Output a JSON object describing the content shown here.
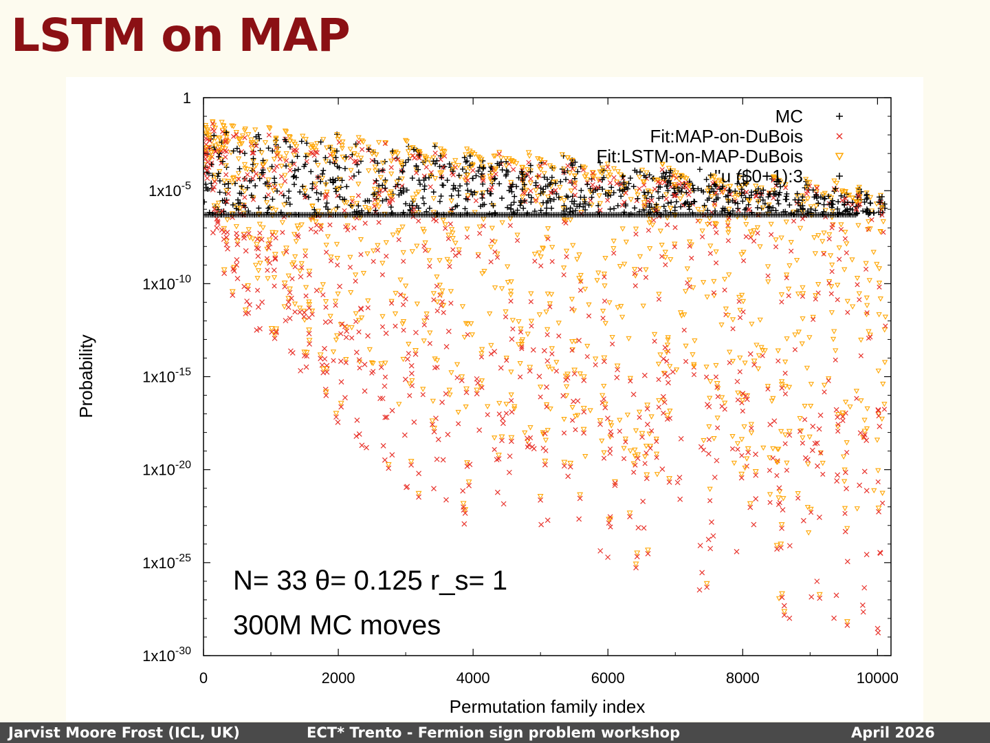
{
  "slide": {
    "title": "LSTM on MAP"
  },
  "footer": {
    "author": "Jarvist Moore Frost  (ICL, UK)",
    "event": "ECT* Trento - Fermion sign problem workshop",
    "date": "April  2026"
  },
  "colors": {
    "title": "#8b1014",
    "mc": "#000000",
    "map_fit": "#e8322b",
    "lstm_fit": "#ffa500",
    "footer_bg": "#4a4a4a",
    "background": "#fdfbef"
  },
  "chart_data": {
    "type": "scatter",
    "title": "",
    "xlabel": "Permutation family index",
    "ylabel": "Probability",
    "xlim": [
      0,
      10200
    ],
    "ylim_log10": [
      -30,
      0
    ],
    "y_scale": "log",
    "x_ticks": [
      0,
      2000,
      4000,
      6000,
      8000,
      10000
    ],
    "x_tick_labels": [
      "0",
      "2000",
      "4000",
      "6000",
      "8000",
      "10000"
    ],
    "y_ticks_log10": [
      0,
      -5,
      -10,
      -15,
      -20,
      -25,
      -30
    ],
    "y_tick_labels": [
      {
        "base": "1",
        "exp": ""
      },
      {
        "base": "1x10",
        "exp": "-5"
      },
      {
        "base": "1x10",
        "exp": "-10"
      },
      {
        "base": "1x10",
        "exp": "-15"
      },
      {
        "base": "1x10",
        "exp": "-20"
      },
      {
        "base": "1x10",
        "exp": "-25"
      },
      {
        "base": "1x10",
        "exp": "-30"
      }
    ],
    "legend_position": "top-right",
    "legend": [
      {
        "label": "MC",
        "marker": "plus",
        "color": "#000000"
      },
      {
        "label": "Fit:MAP-on-DuBois",
        "marker": "cross",
        "color": "#e8322b"
      },
      {
        "label": "Fit:LSTM-on-MAP-DuBois",
        "marker": "triangle-down",
        "color": "#ffa500"
      },
      {
        "label": "''u ($0+1):3",
        "marker": "plus",
        "color": "#000000"
      }
    ],
    "annotations": [
      "N= 33 θ= 0.125 r_s= 1",
      "300M MC moves"
    ],
    "series_description": "Points grouped in sawtooth families; each family starts near the top and decays toward smaller probabilities.",
    "family_starts": [
      0,
      130,
      270,
      420,
      580,
      760,
      960,
      1180,
      1420,
      1680,
      1960,
      2260,
      2600,
      2980,
      3380,
      3820,
      4290,
      4790,
      5320,
      5880,
      6320,
      6800,
      7350,
      7900,
      8400,
      8900,
      9350,
      9700,
      10000
    ],
    "family_min_log10": [
      -5,
      -8,
      -10,
      -11,
      -12,
      -13.5,
      -14,
      -15,
      -16,
      -17,
      -18,
      -19,
      -20,
      -21.5,
      -22,
      -23,
      -23.5,
      -24,
      -23,
      -25.5,
      -26,
      -22,
      -27,
      -25,
      -28,
      -28.5,
      -29.5,
      -29.5,
      -30
    ],
    "mc_detection_floor_log10": -6.3,
    "x_max_data": 10120
  }
}
